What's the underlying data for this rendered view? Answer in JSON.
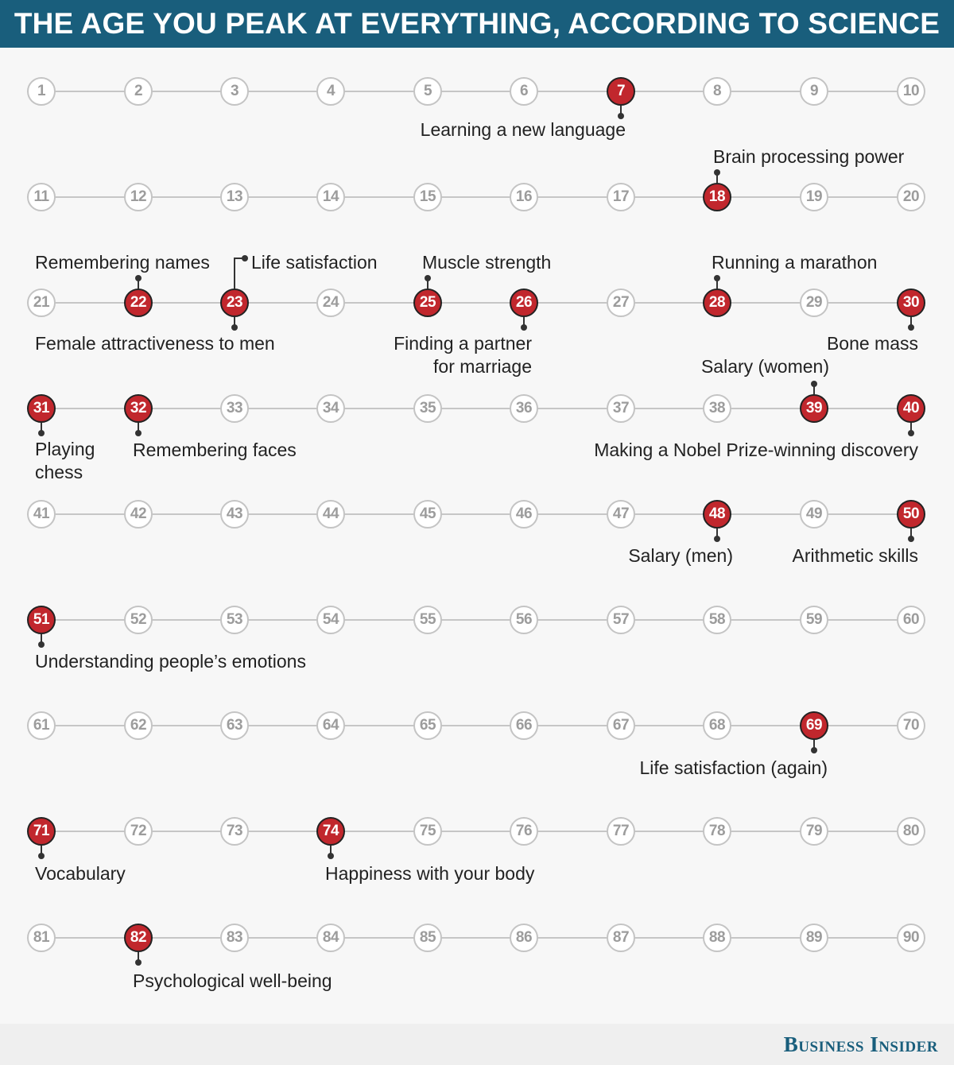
{
  "header": {
    "title": "THE AGE YOU PEAK AT EVERYTHING, ACCORDING TO SCIENCE",
    "color": "#195e7c"
  },
  "grid": {
    "start": 1,
    "end": 90,
    "per_row": 10
  },
  "colors": {
    "peak": "#c1272d",
    "inactive_border": "#c4c4c4",
    "inactive_text": "#9c9c9c"
  },
  "peaks": [
    {
      "age": 7,
      "label": "Learning a new language"
    },
    {
      "age": 18,
      "label": "Brain processing power"
    },
    {
      "age": 22,
      "label": "Remembering names"
    },
    {
      "age": 23,
      "label": "Life satisfaction"
    },
    {
      "age": 25,
      "label": "Muscle strength"
    },
    {
      "age": 28,
      "label": "Running a marathon"
    },
    {
      "age": 23,
      "label": "Female attractiveness to men"
    },
    {
      "age": 26,
      "label": "Finding a partner\nfor marriage"
    },
    {
      "age": 30,
      "label": "Bone mass"
    },
    {
      "age": 39,
      "label": "Salary (women)"
    },
    {
      "age": 31,
      "label": "Playing\nchess"
    },
    {
      "age": 32,
      "label": "Remembering faces"
    },
    {
      "age": 40,
      "label": "Making a Nobel Prize-winning discovery"
    },
    {
      "age": 48,
      "label": "Salary (men)"
    },
    {
      "age": 50,
      "label": "Arithmetic skills"
    },
    {
      "age": 51,
      "label": "Understanding people’s emotions"
    },
    {
      "age": 69,
      "label": "Life satisfaction (again)"
    },
    {
      "age": 71,
      "label": "Vocabulary"
    },
    {
      "age": 74,
      "label": "Happiness with your body"
    },
    {
      "age": 82,
      "label": "Psychological well-being"
    }
  ],
  "footer": {
    "logo": "Business Insider"
  }
}
